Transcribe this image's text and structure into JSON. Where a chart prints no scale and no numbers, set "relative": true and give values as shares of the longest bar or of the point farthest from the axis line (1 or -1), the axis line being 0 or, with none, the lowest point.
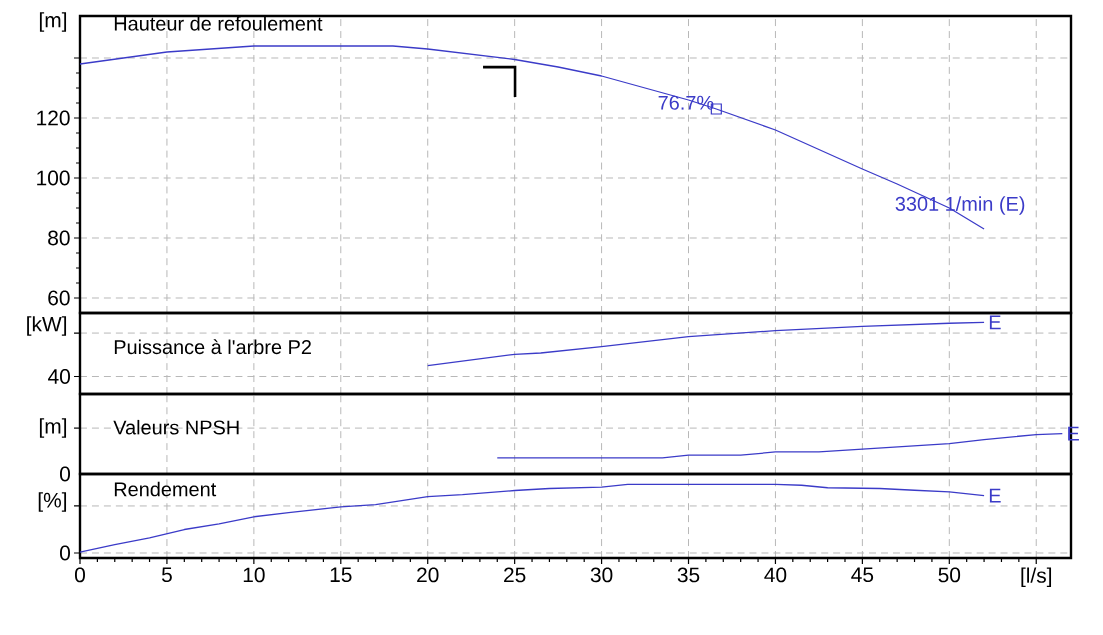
{
  "chart_data": [
    {
      "type": "line",
      "title": "Hauteur de refoulement",
      "ylabel": "[m]",
      "xlim": [
        0,
        57
      ],
      "ylim": [
        55,
        154
      ],
      "xticks": [
        0,
        5,
        10,
        15,
        20,
        25,
        30,
        35,
        40,
        45,
        50,
        55
      ],
      "yticks": [
        60,
        80,
        100,
        120,
        {
          "value": 140,
          "label": null
        }
      ],
      "grid": true,
      "tick_labels": "y",
      "series": [
        {
          "color": "#3b3bc8",
          "x": [
            0,
            5,
            10,
            15,
            18,
            20,
            25,
            27.5,
            30,
            35,
            36.6,
            40,
            45,
            47,
            50,
            52
          ],
          "values": [
            138,
            142,
            144,
            144,
            144,
            143,
            139.5,
            137,
            134,
            126,
            123,
            116,
            103,
            98,
            90,
            83
          ]
        },
        {
          "type": "scatter",
          "marker": "square",
          "color": "#3b3bc8",
          "x": [
            36.6
          ],
          "values": [
            123
          ]
        }
      ],
      "annotations": [
        {
          "text": "76.7%",
          "x": 36.6,
          "y": 123
        },
        {
          "text": "3301 1/min (E)",
          "x": 52,
          "y": 83
        }
      ]
    },
    {
      "type": "line",
      "title": "Puissance à l'arbre P2",
      "ylabel": "[kW]",
      "relative": true,
      "xlim": [
        0,
        57
      ],
      "xticks": [
        0,
        5,
        10,
        15,
        20,
        25,
        30,
        35,
        40,
        45,
        50,
        55
      ],
      "grid": true,
      "tick_labels": false,
      "series": [
        {
          "color": "#3b3bc8",
          "x": [
            20,
            25,
            26.5,
            30,
            35,
            40,
            45,
            50,
            52
          ],
          "values": [
            0.396,
            0.554,
            0.572,
            0.66,
            0.799,
            0.884,
            0.944,
            0.987,
            1
          ]
        }
      ],
      "annotations": [
        {
          "text": "E",
          "x": 52,
          "y": 1
        },
        "40"
      ]
    },
    {
      "type": "line",
      "title": "Valeurs NPSH",
      "ylabel": "[m]",
      "relative": true,
      "xlim": [
        0,
        57
      ],
      "xticks": [
        0,
        5,
        10,
        15,
        20,
        25,
        30,
        35,
        40,
        45,
        50,
        55
      ],
      "grid": true,
      "tick_labels": false,
      "series": [
        {
          "color": "#3b3bc8",
          "x": [
            24,
            30,
            33.5,
            35,
            38,
            40,
            42.5,
            45,
            47.5,
            50,
            52,
            55,
            56.5
          ],
          "values": [
            0.398,
            0.398,
            0.398,
            0.466,
            0.466,
            0.545,
            0.545,
            0.614,
            0.682,
            0.75,
            0.852,
            0.977,
            1
          ]
        }
      ],
      "annotations": [
        {
          "text": "E",
          "x": 56.5,
          "y": 1
        },
        "0"
      ]
    },
    {
      "type": "line",
      "title": "Rendement",
      "ylabel": "[%]",
      "relative": true,
      "xlim": [
        0,
        57
      ],
      "xticks": [
        0,
        5,
        10,
        15,
        20,
        25,
        30,
        35,
        40,
        45,
        50,
        {
          "value": 55,
          "label": "[l/s]"
        }
      ],
      "grid": true,
      "tick_labels": "x",
      "series": [
        {
          "color": "#3b3bc8",
          "x": [
            0,
            2,
            4,
            6,
            8,
            10,
            12,
            15,
            17,
            20,
            22,
            25,
            27,
            30,
            31.5,
            40,
            41.5,
            43,
            46,
            48,
            50,
            52
          ],
          "values": [
            0.081,
            0.183,
            0.272,
            0.387,
            0.464,
            0.56,
            0.617,
            0.694,
            0.726,
            0.834,
            0.86,
            0.917,
            0.944,
            0.962,
            1,
            1,
            0.988,
            0.954,
            0.944,
            0.92,
            0.898,
            0.847
          ]
        }
      ],
      "annotations": [
        {
          "text": "E",
          "x": 52,
          "y": 0.847
        },
        "0"
      ]
    }
  ]
}
